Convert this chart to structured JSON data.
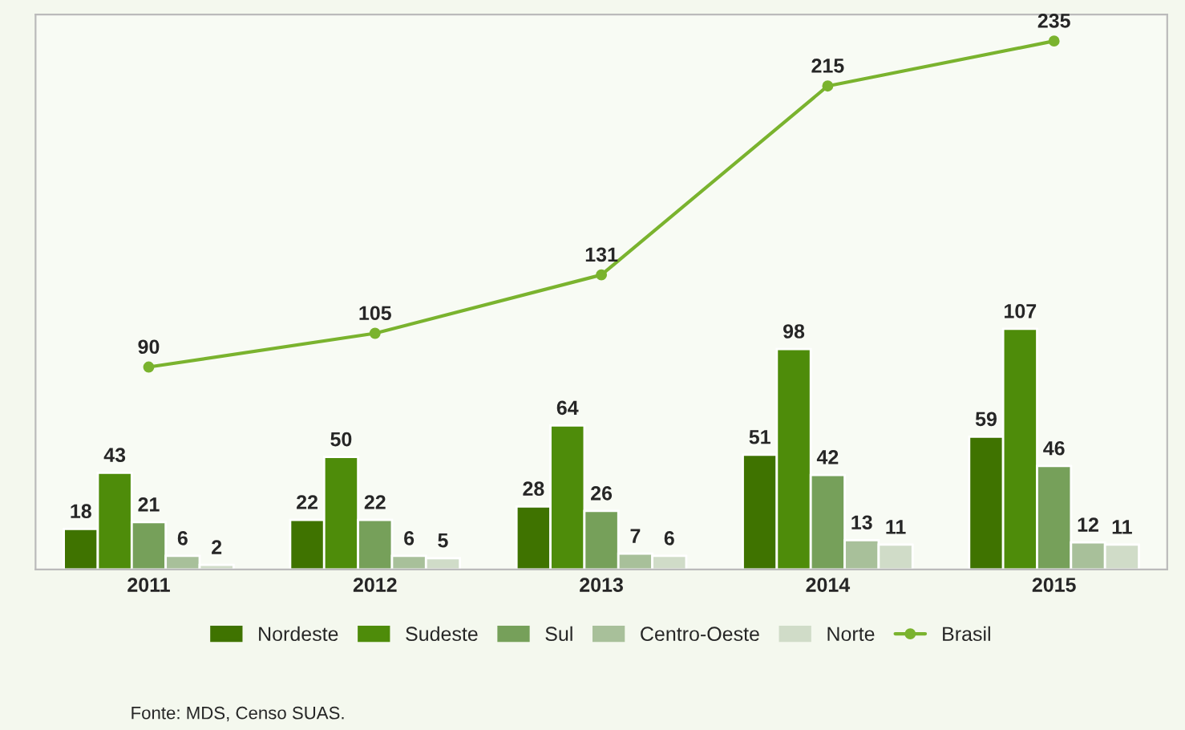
{
  "chart_data": {
    "type": "bar",
    "categories": [
      "2011",
      "2012",
      "2013",
      "2014",
      "2015"
    ],
    "series": [
      {
        "name": "Nordeste",
        "color": "#3f7300",
        "values": [
          18,
          22,
          28,
          51,
          59
        ]
      },
      {
        "name": "Sudeste",
        "color": "#4e8c0a",
        "values": [
          43,
          50,
          64,
          98,
          107
        ]
      },
      {
        "name": "Sul",
        "color": "#76a05a",
        "values": [
          21,
          22,
          26,
          42,
          46
        ]
      },
      {
        "name": "Centro-Oeste",
        "color": "#a8c09a",
        "values": [
          6,
          6,
          7,
          13,
          12
        ]
      },
      {
        "name": "Norte",
        "color": "#d0dcc8",
        "values": [
          2,
          5,
          6,
          11,
          11
        ]
      },
      {
        "name": "Brasil",
        "color": "#7ab32e",
        "type": "line",
        "marker": "circle",
        "values": [
          90,
          105,
          131,
          215,
          235
        ]
      }
    ],
    "data_labels": true,
    "grid": false,
    "legend": "bottom",
    "annotations": [
      "Fonte: MDS, Censo SUAS."
    ]
  }
}
